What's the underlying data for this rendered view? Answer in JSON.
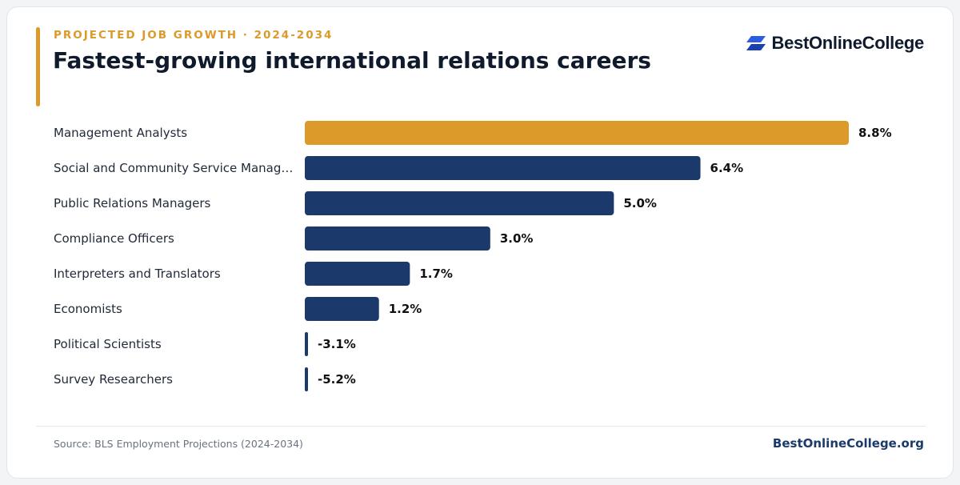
{
  "header": {
    "eyebrow": "PROJECTED JOB GROWTH · 2024-2034",
    "title": "Fastest-growing international relations careers"
  },
  "brand": {
    "logo_text": "BestOnlineCollege",
    "site": "BestOnlineCollege.org",
    "icon": "parallelogram-logo-icon",
    "logo_color": "#2D5BE3"
  },
  "footer": {
    "source": "Source: BLS Employment Projections (2024-2034)"
  },
  "colors": {
    "highlight": "#DB9A2A",
    "bar": "#1B3A6B"
  },
  "chart_data": {
    "type": "bar",
    "orientation": "horizontal",
    "categories": [
      "Management Analysts",
      "Social and Community Service Manag…",
      "Public Relations Managers",
      "Compliance Officers",
      "Interpreters and Translators",
      "Economists",
      "Political Scientists",
      "Survey Researchers"
    ],
    "values": [
      8.8,
      6.4,
      5.0,
      3.0,
      1.7,
      1.2,
      -3.1,
      -5.2
    ],
    "value_labels": [
      "8.8%",
      "6.4%",
      "5.0%",
      "3.0%",
      "1.7%",
      "1.2%",
      "-3.1%",
      "-5.2%"
    ],
    "highlight_index": 0,
    "negative_values_clipped_at_zero": true,
    "xlim": [
      0,
      8.8
    ],
    "grid": false,
    "legend": "none"
  }
}
